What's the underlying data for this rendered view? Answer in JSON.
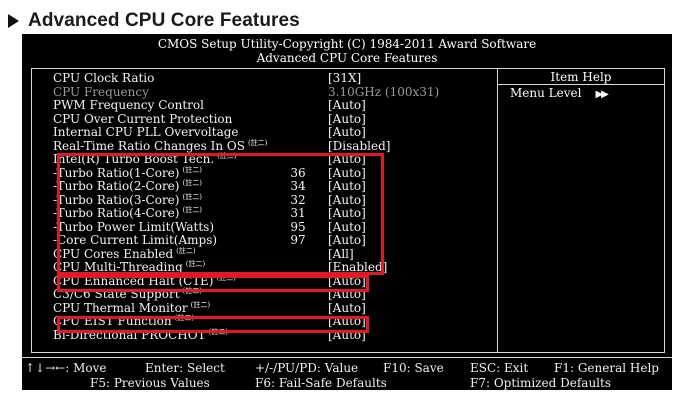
{
  "page": {
    "title": "Advanced CPU Core Features"
  },
  "bios": {
    "header_line1": "CMOS Setup Utility-Copyright (C) 1984-2011 Award Software",
    "header_line2": "Advanced CPU Core Features",
    "item_help": {
      "title": "Item Help",
      "menu_level_label": "Menu Level",
      "menu_level_arrows": "▶▶"
    },
    "settings": [
      {
        "label": "CPU Clock Ratio",
        "note": "",
        "num": "",
        "value": "[31X]",
        "dim": false
      },
      {
        "label": "CPU Frequency",
        "note": "",
        "num": "",
        "value": "3.10GHz (100x31)",
        "dim": true
      },
      {
        "label": "PWM Frequency Control",
        "note": "",
        "num": "",
        "value": "[Auto]",
        "dim": false
      },
      {
        "label": "CPU Over Current Protection",
        "note": "",
        "num": "",
        "value": "[Auto]",
        "dim": false
      },
      {
        "label": "Internal CPU PLL Overvoltage",
        "note": "",
        "num": "",
        "value": "[Auto]",
        "dim": false
      },
      {
        "label": "Real-Time Ratio Changes In OS",
        "note": "(註二)",
        "num": "",
        "value": "[Disabled]",
        "dim": false
      },
      {
        "label": "Intel(R) Turbo Boost Tech.",
        "note": "(註二)",
        "num": "",
        "value": "[Auto]",
        "dim": false
      },
      {
        "label": "-Turbo Ratio(1-Core)",
        "note": "(註二)",
        "num": "36",
        "value": "[Auto]",
        "dim": false
      },
      {
        "label": "-Turbo Ratio(2-Core)",
        "note": "(註二)",
        "num": "34",
        "value": "[Auto]",
        "dim": false
      },
      {
        "label": "-Turbo Ratio(3-Core)",
        "note": "(註二)",
        "num": "32",
        "value": "[Auto]",
        "dim": false
      },
      {
        "label": "-Turbo Ratio(4-Core)",
        "note": "(註二)",
        "num": "31",
        "value": "[Auto]",
        "dim": false
      },
      {
        "label": "-Turbo Power Limit(Watts)",
        "note": "",
        "num": "95",
        "value": "[Auto]",
        "dim": false
      },
      {
        "label": "-Core Current Limit(Amps)",
        "note": "",
        "num": "97",
        "value": "[Auto]",
        "dim": false
      },
      {
        "label": "CPU Cores Enabled",
        "note": "(註二)",
        "num": "",
        "value": "[All]",
        "dim": false
      },
      {
        "label": "CPU Multi-Threading",
        "note": "(註二)",
        "num": "",
        "value": "[Enabled]",
        "dim": false
      },
      {
        "label": "CPU Enhanced Halt (C1E)",
        "note": "(註二)",
        "num": "",
        "value": "[Auto]",
        "dim": false
      },
      {
        "label": "C3/C6 State Support",
        "note": "(註二)",
        "num": "",
        "value": "[Auto]",
        "dim": false
      },
      {
        "label": "CPU Thermal Monitor",
        "note": "(註二)",
        "num": "",
        "value": "[Auto]",
        "dim": false
      },
      {
        "label": "CPU EIST Function",
        "note": "(註二)",
        "num": "",
        "value": "[Auto]",
        "dim": false
      },
      {
        "label": "Bi-Directional PROCHOT",
        "note": "(註二)",
        "num": "",
        "value": "[Auto]",
        "dim": false
      }
    ],
    "footer": {
      "move": "↑↓→←: Move",
      "enter": "Enter: Select",
      "value": "+/-/PU/PD: Value",
      "save": "F10: Save",
      "exit": "ESC: Exit",
      "help": "F1: General Help",
      "previous": "F5: Previous Values",
      "failsafe": "F6: Fail-Safe Defaults",
      "optimized": "F7: Optimized Defaults"
    }
  },
  "colors": {
    "highlight": "#e01a25",
    "screen_bg": "#000000",
    "text": "#f2f2f2",
    "dim_text": "#9a9a9a"
  }
}
